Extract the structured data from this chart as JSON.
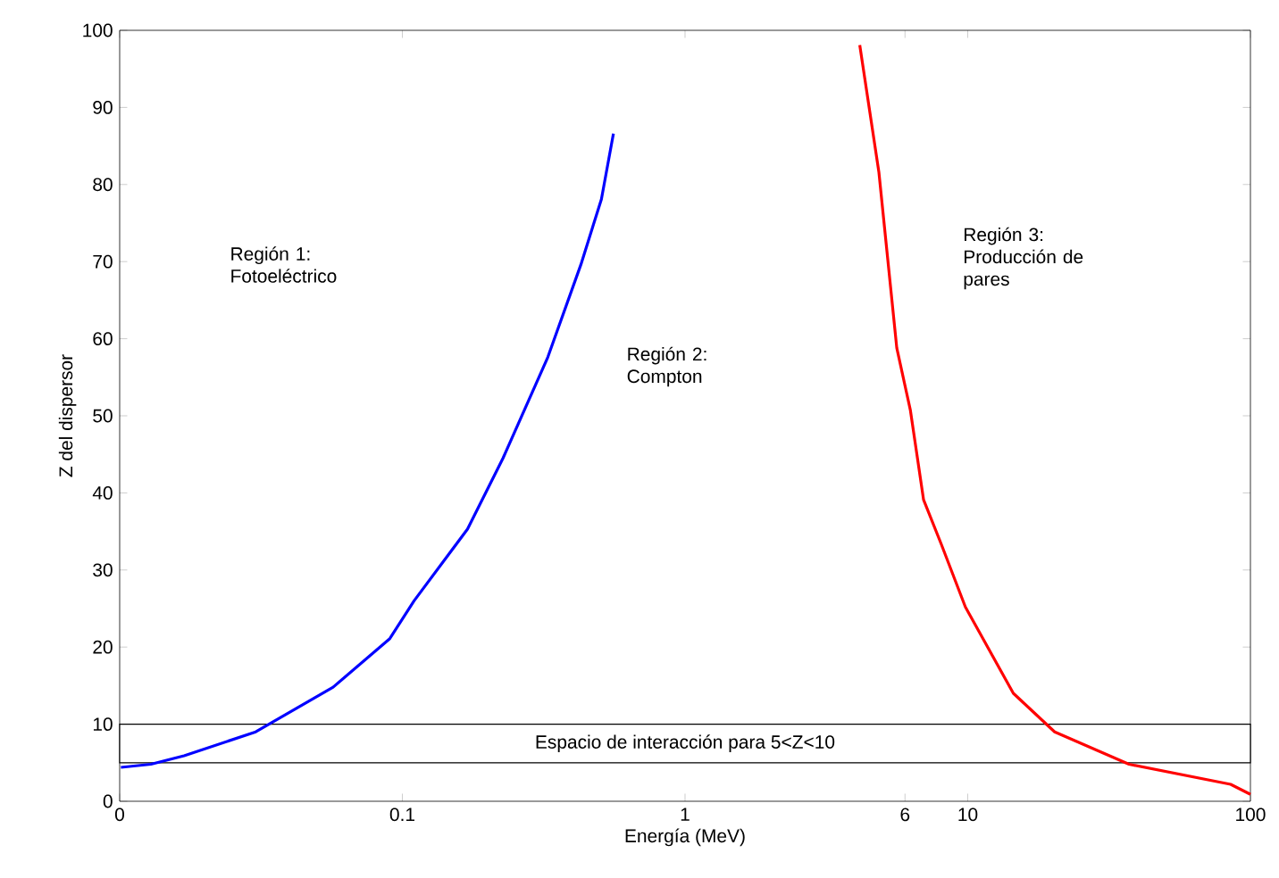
{
  "chart_data": {
    "type": "line",
    "xlabel": "Energía (MeV)",
    "ylabel": "Z del dispersor",
    "log": "x",
    "xlim": [
      0.01,
      100
    ],
    "ylim": [
      0,
      100
    ],
    "xticks": [
      {
        "value": 0.01,
        "label": "0"
      },
      0.1,
      1,
      6,
      10,
      100
    ],
    "yticks": [
      0,
      10,
      20,
      30,
      40,
      50,
      60,
      70,
      80,
      90,
      100
    ],
    "line_style": "solid",
    "marker": "none",
    "series": [
      {
        "color": "#0000ff",
        "x": [
          0.0101,
          0.0129,
          0.0169,
          0.0303,
          0.0569,
          0.0903,
          0.11,
          0.17,
          0.227,
          0.327,
          0.428,
          0.506,
          0.558
        ],
        "values": [
          4.4,
          4.8,
          5.9,
          9.0,
          14.8,
          21.1,
          26.0,
          35.3,
          44.5,
          57.6,
          69.6,
          78.1,
          86.6
        ]
      },
      {
        "color": "#ff0000",
        "x": [
          4.15,
          4.85,
          5.61,
          6.27,
          6.98,
          8.07,
          9.81,
          14.5,
          20.3,
          37.2,
          85.1,
          100
        ],
        "values": [
          98.1,
          81.6,
          58.8,
          50.7,
          39.1,
          33.3,
          25.2,
          14.0,
          9.0,
          4.8,
          2.2,
          0.9
        ]
      }
    ],
    "annotations": [
      "Región 1: Fotoeléctrico",
      "Región 2: Compton",
      "Región 3: Producción de pares"
    ],
    "bands": [
      {
        "axis": "y",
        "from": 5,
        "to": 10,
        "label": "Espacio de interacción para 5<Z<10",
        "color": "#ffffff"
      }
    ]
  }
}
